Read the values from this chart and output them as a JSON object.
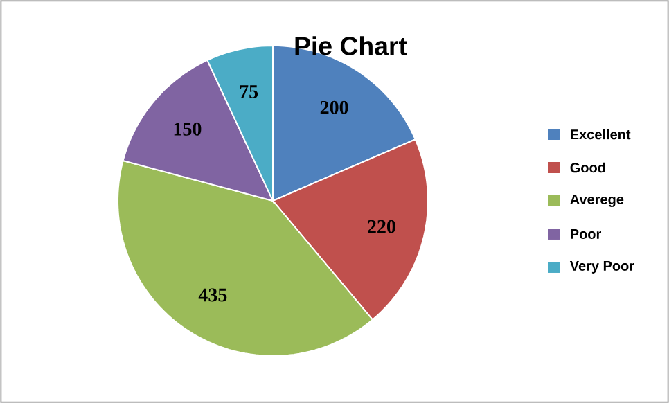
{
  "chart_data": {
    "type": "pie",
    "title": "Pie Chart",
    "categories": [
      "Excellent",
      "Good",
      "Averege",
      "Poor",
      "Very Poor"
    ],
    "values": [
      200,
      220,
      435,
      150,
      75
    ],
    "colors": [
      "#4f81bd",
      "#c0504d",
      "#9bbb59",
      "#8064a2",
      "#4bacc6"
    ],
    "data_labels": true,
    "legend": "right"
  }
}
